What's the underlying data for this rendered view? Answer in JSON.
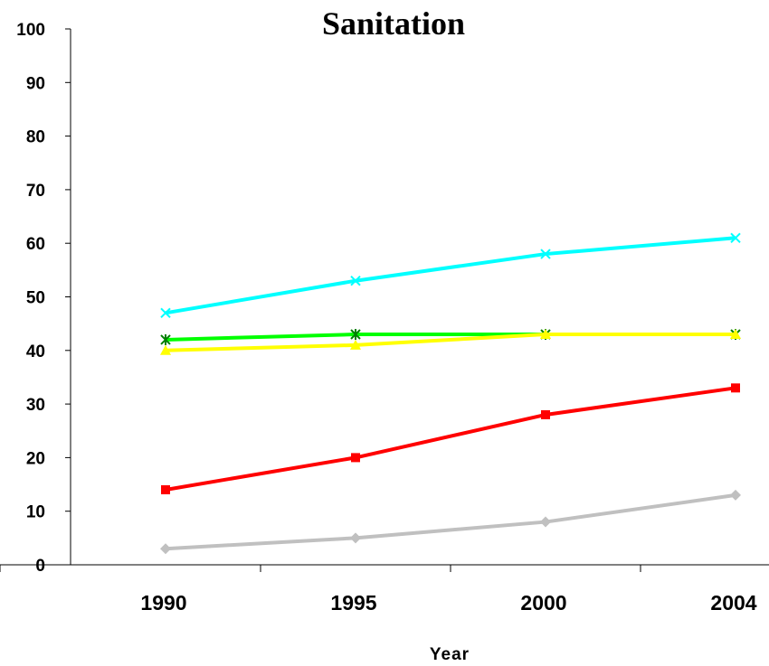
{
  "chart_data": {
    "type": "line",
    "title": "Sanitation",
    "xlabel": "Year",
    "ylabel": "",
    "categories": [
      "1990",
      "1995",
      "2000",
      "2004"
    ],
    "ylim": [
      0,
      100
    ],
    "yticks": [
      "0",
      "10",
      "20",
      "30",
      "40",
      "50",
      "60",
      "70",
      "80",
      "90",
      "100"
    ],
    "grid": false,
    "legend": "none",
    "series": [
      {
        "color": "#00ffff",
        "marker": "x",
        "values": [
          47,
          53,
          58,
          61
        ]
      },
      {
        "color": "#00ff00",
        "marker": "asterisk",
        "values": [
          42,
          43,
          43,
          43
        ]
      },
      {
        "color": "#ffff00",
        "marker": "triangle",
        "values": [
          40,
          41,
          43,
          43
        ]
      },
      {
        "color": "#ff0000",
        "marker": "square",
        "values": [
          14,
          20,
          28,
          33
        ]
      },
      {
        "color": "#c0c0c0",
        "marker": "diamond",
        "values": [
          3,
          5,
          8,
          13
        ]
      }
    ]
  }
}
